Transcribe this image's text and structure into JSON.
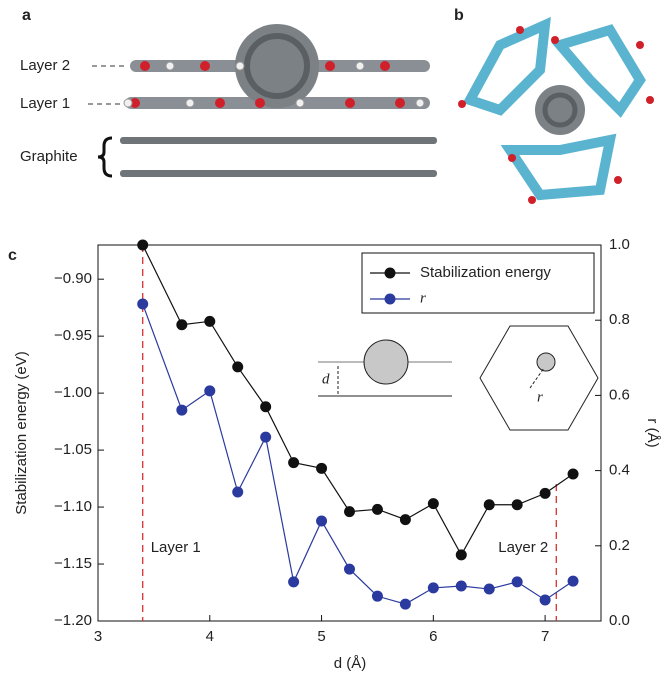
{
  "panel_labels": [
    "a",
    "b",
    "c"
  ],
  "panel_a": {
    "labels": [
      "Layer 2",
      "Layer 1",
      "Graphite"
    ]
  },
  "chart_data": {
    "type": "line",
    "x": [
      3.4,
      3.75,
      4.0,
      4.25,
      4.5,
      4.75,
      5.0,
      5.25,
      5.5,
      5.75,
      6.0,
      6.25,
      6.5,
      6.75,
      7.0,
      7.25
    ],
    "series": [
      {
        "name": "Stabilization energy",
        "color": "#111111",
        "values": [
          -0.87,
          -0.94,
          -0.937,
          -0.977,
          -1.012,
          -1.061,
          -1.066,
          -1.104,
          -1.102,
          -1.111,
          -1.097,
          -1.142,
          -1.098,
          -1.098,
          -1.088,
          -1.071
        ]
      },
      {
        "name": "r",
        "color": "#2b3a9e",
        "axis": "y2",
        "values": [
          0.843,
          0.561,
          0.612,
          0.343,
          0.489,
          0.104,
          0.266,
          0.138,
          0.066,
          0.045,
          0.088,
          0.093,
          0.085,
          0.104,
          0.056,
          0.106
        ]
      }
    ],
    "xlabel": "d (Å)",
    "ylabel": "Stabilization energy (eV)",
    "y2label": "r (Å)",
    "xlim": [
      3,
      7.5
    ],
    "xticks": [
      3,
      4,
      5,
      6,
      7
    ],
    "ylim": [
      -1.2,
      -0.87
    ],
    "yticks": [
      {
        "value": -1.2,
        "label": "−1.20"
      },
      {
        "value": -1.15,
        "label": "−1.15"
      },
      {
        "value": -1.1,
        "label": "−1.10"
      },
      {
        "value": -1.05,
        "label": "−1.05"
      },
      {
        "value": -1.0,
        "label": "−1.00"
      },
      {
        "value": -0.95,
        "label": "−0.95"
      },
      {
        "value": -0.9,
        "label": "−0.90"
      }
    ],
    "y2lim": [
      0,
      1
    ],
    "y2ticks": [
      {
        "value": 0,
        "label": "0.0"
      },
      0.2,
      0.4,
      0.6,
      0.8,
      {
        "value": 1,
        "label": "1.0"
      }
    ],
    "legend": "upper right",
    "annotations": [
      {
        "text": "Layer 1",
        "x": 3.4
      },
      {
        "text": "Layer 2",
        "x": 7.1
      }
    ],
    "inset_labels": [
      "d",
      "r"
    ]
  }
}
